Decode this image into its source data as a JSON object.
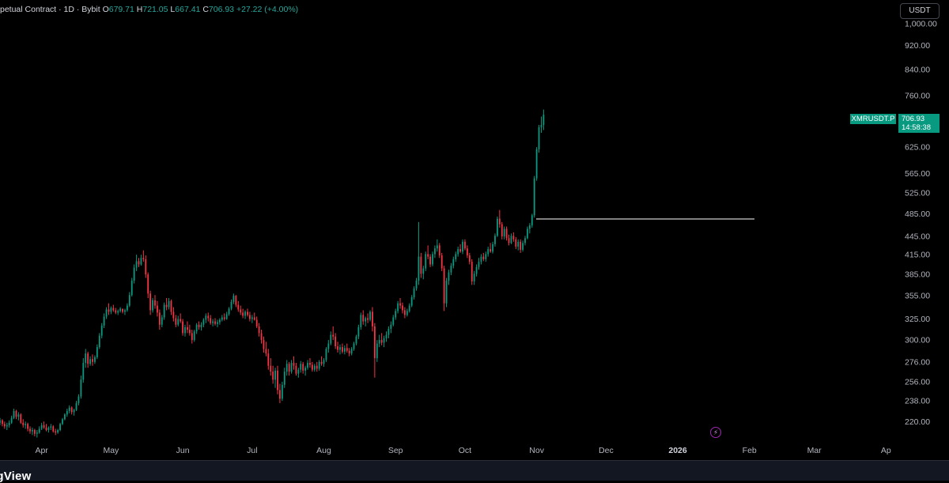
{
  "header": {
    "title": "petual Contract · 1D · Bybit",
    "o_label": "O",
    "o_value": "679.71",
    "h_label": "H",
    "h_value": "721.05",
    "l_label": "L",
    "l_value": "667.41",
    "c_label": "C",
    "c_value": "706.93",
    "change": "+27.22 (+4.00%)"
  },
  "currency_button": "USDT",
  "symbol_tag": "XMRUSDT.P",
  "price_tag": {
    "price": "706.93",
    "countdown": "14:58:38"
  },
  "brand": "ngView",
  "colors": {
    "up": "#089981",
    "down": "#f23645",
    "background": "#000000",
    "axis_text": "#b2b5be",
    "line": "#ffffff",
    "flash": "#9c27b0"
  },
  "icons": {
    "flash": "lightning-icon"
  },
  "chart_data": {
    "type": "candlestick",
    "title": "",
    "xlabel": "",
    "ylabel": "",
    "y_scale": "log",
    "ylim": [
      203,
      1030
    ],
    "grid": false,
    "y_ticks": [
      1000,
      920,
      840,
      760,
      625,
      565,
      525,
      485,
      445,
      415,
      385,
      355,
      325,
      300,
      276,
      256,
      238,
      220
    ],
    "y_tick_labels": [
      "1,000.00",
      "920.00",
      "840.00",
      "760.00",
      "625.00",
      "565.00",
      "525.00",
      "485.00",
      "445.00",
      "415.00",
      "385.00",
      "355.00",
      "325.00",
      "300.00",
      "276.00",
      "256.00",
      "238.00",
      "220.00"
    ],
    "x_tick_labels": [
      "Apr",
      "May",
      "Jun",
      "Jul",
      "Aug",
      "Sep",
      "Oct",
      "Nov",
      "Dec",
      "2026",
      "Feb",
      "Mar",
      "Ap"
    ],
    "x_tick_dates": [
      "2025-04-01",
      "2025-05-01",
      "2025-06-01",
      "2025-07-01",
      "2025-08-01",
      "2025-09-01",
      "2025-10-01",
      "2025-11-01",
      "2025-12-01",
      "2026-01-01",
      "2026-02-01",
      "2026-03-01",
      "2026-04-01"
    ],
    "date_range": [
      "2025-03-14",
      "2026-04-05"
    ],
    "series_name": "XMRUSDT.P",
    "candles_start": "2025-03-14",
    "candles": [
      [
        219,
        223,
        217,
        221
      ],
      [
        221,
        222,
        216,
        218
      ],
      [
        218,
        220,
        214,
        216
      ],
      [
        216,
        219,
        213,
        217
      ],
      [
        217,
        221,
        215,
        219
      ],
      [
        219,
        225,
        218,
        223
      ],
      [
        223,
        231,
        222,
        229
      ],
      [
        229,
        230,
        222,
        224
      ],
      [
        224,
        228,
        221,
        226
      ],
      [
        226,
        227,
        218,
        219
      ],
      [
        219,
        222,
        215,
        217
      ],
      [
        217,
        220,
        214,
        218
      ],
      [
        218,
        219,
        212,
        214
      ],
      [
        214,
        216,
        210,
        212
      ],
      [
        212,
        215,
        209,
        213
      ],
      [
        213,
        214,
        208,
        210
      ],
      [
        210,
        213,
        207,
        211
      ],
      [
        211,
        216,
        210,
        214
      ],
      [
        214,
        219,
        213,
        217
      ],
      [
        217,
        220,
        214,
        215
      ],
      [
        215,
        218,
        212,
        213
      ],
      [
        213,
        216,
        211,
        215
      ],
      [
        215,
        218,
        213,
        216
      ],
      [
        216,
        217,
        211,
        212
      ],
      [
        212,
        214,
        209,
        211
      ],
      [
        211,
        214,
        210,
        213
      ],
      [
        213,
        219,
        212,
        218
      ],
      [
        218,
        223,
        217,
        222
      ],
      [
        222,
        227,
        221,
        226
      ],
      [
        226,
        231,
        224,
        229
      ],
      [
        229,
        234,
        227,
        232
      ],
      [
        232,
        233,
        226,
        228
      ],
      [
        228,
        231,
        225,
        230
      ],
      [
        230,
        238,
        229,
        236
      ],
      [
        236,
        244,
        234,
        242
      ],
      [
        242,
        262,
        240,
        258
      ],
      [
        258,
        280,
        255,
        275
      ],
      [
        275,
        290,
        270,
        285
      ],
      [
        285,
        287,
        270,
        274
      ],
      [
        274,
        282,
        272,
        279
      ],
      [
        279,
        284,
        272,
        276
      ],
      [
        276,
        283,
        274,
        281
      ],
      [
        281,
        295,
        279,
        292
      ],
      [
        292,
        308,
        290,
        305
      ],
      [
        305,
        320,
        302,
        317
      ],
      [
        317,
        332,
        314,
        328
      ],
      [
        328,
        340,
        325,
        337
      ],
      [
        337,
        345,
        330,
        334
      ],
      [
        334,
        341,
        331,
        339
      ],
      [
        339,
        343,
        334,
        336
      ],
      [
        336,
        339,
        331,
        333
      ],
      [
        333,
        337,
        330,
        335
      ],
      [
        335,
        340,
        333,
        338
      ],
      [
        338,
        336,
        332,
        334
      ],
      [
        334,
        338,
        330,
        336
      ],
      [
        336,
        345,
        334,
        342
      ],
      [
        342,
        360,
        340,
        356
      ],
      [
        356,
        380,
        354,
        376
      ],
      [
        376,
        400,
        372,
        395
      ],
      [
        395,
        415,
        390,
        405
      ],
      [
        405,
        410,
        396,
        400
      ],
      [
        400,
        415,
        398,
        410
      ],
      [
        410,
        422,
        404,
        408
      ],
      [
        408,
        414,
        380,
        385
      ],
      [
        385,
        388,
        352,
        358
      ],
      [
        358,
        362,
        330,
        336
      ],
      [
        336,
        352,
        333,
        349
      ],
      [
        349,
        356,
        338,
        342
      ],
      [
        342,
        348,
        328,
        333
      ],
      [
        333,
        337,
        312,
        318
      ],
      [
        318,
        330,
        315,
        327
      ],
      [
        327,
        346,
        324,
        343
      ],
      [
        343,
        352,
        336,
        340
      ],
      [
        340,
        352,
        337,
        348
      ],
      [
        348,
        350,
        330,
        334
      ],
      [
        334,
        340,
        322,
        326
      ],
      [
        326,
        330,
        315,
        318
      ],
      [
        318,
        329,
        316,
        325
      ],
      [
        325,
        332,
        320,
        322
      ],
      [
        322,
        325,
        305,
        308
      ],
      [
        308,
        318,
        304,
        315
      ],
      [
        315,
        322,
        308,
        312
      ],
      [
        312,
        318,
        305,
        308
      ],
      [
        308,
        312,
        296,
        300
      ],
      [
        300,
        312,
        298,
        310
      ],
      [
        310,
        320,
        307,
        318
      ],
      [
        318,
        322,
        312,
        315
      ],
      [
        315,
        321,
        311,
        318
      ],
      [
        318,
        326,
        315,
        324
      ],
      [
        324,
        332,
        320,
        329
      ],
      [
        329,
        333,
        322,
        326
      ],
      [
        326,
        330,
        318,
        320
      ],
      [
        320,
        325,
        316,
        322
      ],
      [
        322,
        326,
        317,
        319
      ],
      [
        319,
        324,
        315,
        321
      ],
      [
        321,
        326,
        318,
        324
      ],
      [
        324,
        330,
        322,
        327
      ],
      [
        327,
        332,
        323,
        325
      ],
      [
        325,
        334,
        324,
        331
      ],
      [
        331,
        340,
        329,
        338
      ],
      [
        338,
        350,
        336,
        347
      ],
      [
        347,
        358,
        344,
        355
      ],
      [
        355,
        356,
        340,
        343
      ],
      [
        343,
        348,
        334,
        337
      ],
      [
        337,
        342,
        330,
        333
      ],
      [
        333,
        338,
        326,
        329
      ],
      [
        329,
        336,
        325,
        334
      ],
      [
        334,
        338,
        328,
        330
      ],
      [
        330,
        334,
        322,
        325
      ],
      [
        325,
        330,
        320,
        327
      ],
      [
        327,
        333,
        323,
        324
      ],
      [
        324,
        328,
        314,
        316
      ],
      [
        316,
        320,
        304,
        308
      ],
      [
        308,
        312,
        296,
        300
      ],
      [
        300,
        304,
        286,
        290
      ],
      [
        290,
        298,
        282,
        285
      ],
      [
        285,
        290,
        268,
        272
      ],
      [
        272,
        280,
        262,
        266
      ],
      [
        266,
        272,
        254,
        258
      ],
      [
        258,
        270,
        250,
        267
      ],
      [
        267,
        272,
        244,
        248
      ],
      [
        248,
        254,
        236,
        240
      ],
      [
        240,
        256,
        238,
        253
      ],
      [
        253,
        270,
        250,
        266
      ],
      [
        266,
        278,
        262,
        274
      ],
      [
        274,
        276,
        262,
        266
      ],
      [
        266,
        278,
        264,
        275
      ],
      [
        275,
        282,
        268,
        272
      ],
      [
        272,
        275,
        262,
        264
      ],
      [
        264,
        270,
        260,
        268
      ],
      [
        268,
        277,
        265,
        274
      ],
      [
        274,
        276,
        264,
        267
      ],
      [
        267,
        272,
        262,
        270
      ],
      [
        270,
        278,
        268,
        275
      ],
      [
        275,
        280,
        270,
        273
      ],
      [
        273,
        276,
        266,
        268
      ],
      [
        268,
        274,
        266,
        272
      ],
      [
        272,
        276,
        266,
        269
      ],
      [
        269,
        278,
        267,
        276
      ],
      [
        276,
        282,
        272,
        274
      ],
      [
        274,
        280,
        271,
        278
      ],
      [
        278,
        292,
        276,
        290
      ],
      [
        290,
        300,
        286,
        296
      ],
      [
        296,
        310,
        294,
        306
      ],
      [
        306,
        316,
        300,
        304
      ],
      [
        304,
        308,
        290,
        293
      ],
      [
        293,
        298,
        286,
        289
      ],
      [
        289,
        295,
        284,
        292
      ],
      [
        292,
        296,
        285,
        287
      ],
      [
        287,
        294,
        284,
        291
      ],
      [
        291,
        296,
        286,
        288
      ],
      [
        288,
        291,
        282,
        285
      ],
      [
        285,
        292,
        283,
        290
      ],
      [
        290,
        298,
        288,
        296
      ],
      [
        296,
        306,
        294,
        304
      ],
      [
        304,
        318,
        301,
        315
      ],
      [
        315,
        333,
        312,
        330
      ],
      [
        330,
        336,
        318,
        322
      ],
      [
        322,
        328,
        316,
        326
      ],
      [
        326,
        332,
        320,
        324
      ],
      [
        324,
        336,
        322,
        334
      ],
      [
        334,
        340,
        310,
        316
      ],
      [
        316,
        320,
        260,
        280
      ],
      [
        280,
        300,
        276,
        296
      ],
      [
        296,
        306,
        292,
        300
      ],
      [
        300,
        308,
        294,
        297
      ],
      [
        297,
        305,
        292,
        302
      ],
      [
        302,
        310,
        298,
        306
      ],
      [
        306,
        316,
        302,
        313
      ],
      [
        313,
        322,
        308,
        318
      ],
      [
        318,
        330,
        316,
        327
      ],
      [
        327,
        338,
        324,
        335
      ],
      [
        335,
        348,
        332,
        345
      ],
      [
        345,
        352,
        338,
        342
      ],
      [
        342,
        346,
        332,
        336
      ],
      [
        336,
        340,
        326,
        330
      ],
      [
        330,
        338,
        328,
        335
      ],
      [
        335,
        345,
        333,
        342
      ],
      [
        342,
        356,
        340,
        353
      ],
      [
        353,
        368,
        350,
        365
      ],
      [
        365,
        380,
        362,
        376
      ],
      [
        376,
        470,
        370,
        412
      ],
      [
        412,
        418,
        380,
        386
      ],
      [
        386,
        398,
        378,
        394
      ],
      [
        394,
        420,
        390,
        416
      ],
      [
        416,
        430,
        408,
        412
      ],
      [
        412,
        416,
        396,
        400
      ],
      [
        400,
        420,
        397,
        416
      ],
      [
        416,
        430,
        410,
        425
      ],
      [
        425,
        440,
        420,
        430
      ],
      [
        430,
        434,
        410,
        414
      ],
      [
        414,
        418,
        390,
        394
      ],
      [
        394,
        398,
        335,
        345
      ],
      [
        345,
        380,
        340,
        376
      ],
      [
        376,
        392,
        370,
        388
      ],
      [
        388,
        402,
        384,
        398
      ],
      [
        398,
        412,
        394,
        408
      ],
      [
        408,
        420,
        404,
        416
      ],
      [
        416,
        428,
        412,
        424
      ],
      [
        424,
        432,
        418,
        420
      ],
      [
        420,
        440,
        416,
        436
      ],
      [
        436,
        440,
        422,
        425
      ],
      [
        425,
        430,
        410,
        414
      ],
      [
        414,
        418,
        400,
        404
      ],
      [
        404,
        408,
        370,
        375
      ],
      [
        375,
        390,
        370,
        386
      ],
      [
        386,
        400,
        382,
        396
      ],
      [
        396,
        410,
        392,
        404
      ],
      [
        404,
        416,
        400,
        412
      ],
      [
        412,
        418,
        405,
        408
      ],
      [
        408,
        420,
        404,
        416
      ],
      [
        416,
        428,
        412,
        424
      ],
      [
        424,
        434,
        418,
        420
      ],
      [
        420,
        436,
        417,
        432
      ],
      [
        432,
        450,
        428,
        446
      ],
      [
        446,
        480,
        444,
        476
      ],
      [
        476,
        492,
        460,
        466
      ],
      [
        466,
        470,
        440,
        445
      ],
      [
        445,
        462,
        440,
        458
      ],
      [
        458,
        462,
        438,
        442
      ],
      [
        442,
        448,
        430,
        434
      ],
      [
        434,
        450,
        432,
        446
      ],
      [
        446,
        452,
        436,
        440
      ],
      [
        440,
        444,
        424,
        428
      ],
      [
        428,
        440,
        422,
        436
      ],
      [
        436,
        440,
        418,
        423
      ],
      [
        423,
        438,
        420,
        434
      ],
      [
        434,
        446,
        430,
        442
      ],
      [
        442,
        462,
        440,
        458
      ],
      [
        458,
        468,
        450,
        464
      ],
      [
        464,
        485,
        460,
        482
      ],
      [
        482,
        560,
        478,
        555
      ],
      [
        555,
        625,
        550,
        620
      ],
      [
        620,
        680,
        612,
        674
      ],
      [
        674,
        702,
        660,
        680
      ],
      [
        680,
        721,
        667,
        707
      ]
    ]
  }
}
